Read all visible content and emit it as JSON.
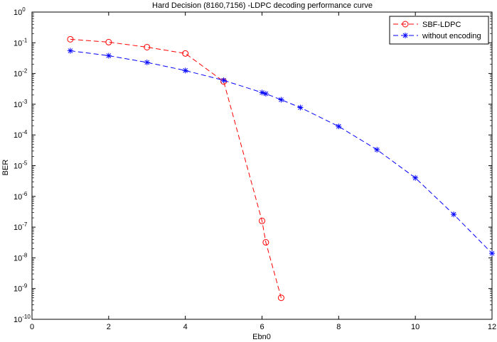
{
  "chart_data": {
    "type": "line",
    "title": "Hard Decision (8160,7156) -LDPC decoding performance curve",
    "xlabel": "Ebn0",
    "ylabel": "BER",
    "xlim": [
      0,
      12
    ],
    "ylim": [
      1e-10,
      1
    ],
    "y_scale": "log",
    "x_ticks": [
      0,
      2,
      4,
      6,
      8,
      10,
      12
    ],
    "y_tick_exponents": [
      0,
      -1,
      -2,
      -3,
      -4,
      -5,
      -6,
      -7,
      -8,
      -9,
      -10
    ],
    "y_tick_base": "10",
    "grid": false,
    "legend_position": "top-right",
    "series": [
      {
        "name": "SBF-LDPC",
        "color": "#ff0000",
        "line_style": "dashed",
        "marker": "circle",
        "x": [
          1,
          2,
          3,
          4,
          5,
          6,
          6.1,
          6.5
        ],
        "y": [
          0.13,
          0.105,
          0.072,
          0.045,
          0.0055,
          1.6e-07,
          3.2e-08,
          5e-10
        ]
      },
      {
        "name": "without encoding",
        "color": "#0000ff",
        "line_style": "dashed",
        "marker": "star",
        "x": [
          1,
          2,
          3,
          4,
          5,
          6,
          6.1,
          6.5,
          7,
          8,
          9,
          10,
          11,
          12
        ],
        "y": [
          0.055,
          0.038,
          0.023,
          0.0125,
          0.006,
          0.0024,
          0.0022,
          0.0014,
          0.00078,
          0.00019,
          3.3e-05,
          4e-06,
          2.6e-07,
          1.4e-08
        ]
      }
    ]
  }
}
